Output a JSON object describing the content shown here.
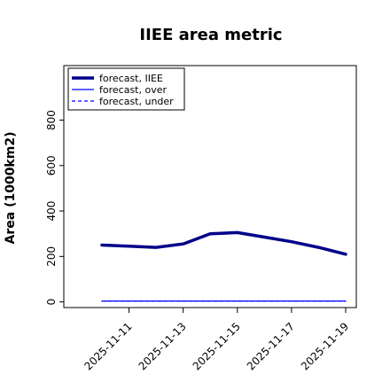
{
  "chart_data": {
    "type": "line",
    "title": "IIEE area metric",
    "xlabel": "",
    "ylabel": "Area (1000km2)",
    "x": [
      "2025-11-10",
      "2025-11-11",
      "2025-11-12",
      "2025-11-13",
      "2025-11-14",
      "2025-11-15",
      "2025-11-16",
      "2025-11-17",
      "2025-11-18",
      "2025-11-19"
    ],
    "x_ticks": [
      "2025-11-11",
      "2025-11-13",
      "2025-11-15",
      "2025-11-17",
      "2025-11-19"
    ],
    "x_tick_colors": [
      "#228B22",
      "#000000",
      "#000000",
      "#000000",
      "#000000"
    ],
    "ylim": [
      -25,
      1040
    ],
    "y_ticks": [
      0,
      200,
      400,
      600,
      800
    ],
    "series": [
      {
        "name": "forecast, IIEE",
        "color": "#00008B",
        "style": "solid-thick",
        "values": [
          250,
          245,
          240,
          255,
          300,
          305,
          285,
          265,
          240,
          210
        ]
      },
      {
        "name": "forecast, over",
        "color": "#0000FF",
        "style": "solid",
        "values": [
          4,
          4,
          4,
          4,
          4,
          4,
          4,
          4,
          4,
          4
        ]
      },
      {
        "name": "forecast, under",
        "color": "#0000FF",
        "style": "dashed",
        "values": [
          4,
          4,
          4,
          4,
          4,
          4,
          4,
          4,
          4,
          4
        ]
      }
    ],
    "legend_position": "top-left",
    "grid": false
  }
}
